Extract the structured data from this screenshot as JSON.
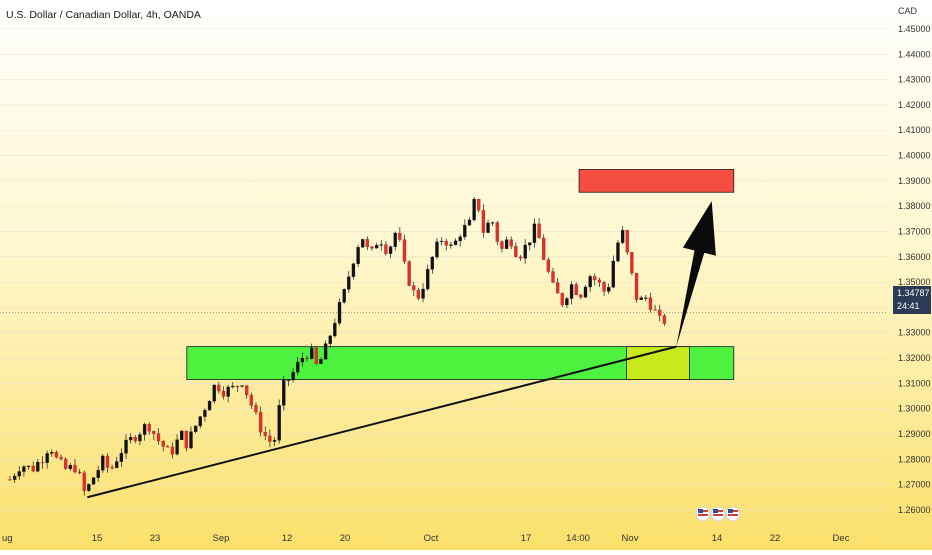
{
  "chart_data": {
    "type": "candlestick",
    "title": "U.S. Dollar / Canadian Dollar, 4h, OANDA",
    "ylabel": "CAD",
    "ylim": [
      1.26,
      1.46
    ],
    "y_ticks": [
      "1.45000",
      "1.44000",
      "1.43000",
      "1.42000",
      "1.41000",
      "1.40000",
      "1.39000",
      "1.38000",
      "1.37000",
      "1.36000",
      "1.35000",
      "1.34000",
      "1.33000",
      "1.32000",
      "1.31000",
      "1.30000",
      "1.29000",
      "1.28000",
      "1.27000",
      "1.26000"
    ],
    "x_ticks": [
      "ug",
      "15",
      "23",
      "Sep",
      "12",
      "20",
      "Oct",
      "17",
      "14:00",
      "Nov",
      "14",
      "22",
      "Dec"
    ],
    "current_price": "1.34787",
    "countdown": "24:41",
    "price_path": [
      {
        "t": 0.0,
        "p": 1.282
      },
      {
        "t": 1.0,
        "p": 1.288
      },
      {
        "t": 2.0,
        "p": 1.286
      },
      {
        "t": 3.0,
        "p": 1.291
      },
      {
        "t": 3.6,
        "p": 1.296
      },
      {
        "t": 4.2,
        "p": 1.29
      },
      {
        "t": 5.0,
        "p": 1.286
      },
      {
        "t": 6.0,
        "p": 1.287
      },
      {
        "t": 6.8,
        "p": 1.276
      },
      {
        "t": 7.3,
        "p": 1.281
      },
      {
        "t": 8.5,
        "p": 1.29
      },
      {
        "t": 9.0,
        "p": 1.285
      },
      {
        "t": 10.0,
        "p": 1.293
      },
      {
        "t": 11.0,
        "p": 1.298
      },
      {
        "t": 12.0,
        "p": 1.302
      },
      {
        "t": 12.5,
        "p": 1.304
      },
      {
        "t": 13.5,
        "p": 1.297
      },
      {
        "t": 14.5,
        "p": 1.292
      },
      {
        "t": 15.5,
        "p": 1.3
      },
      {
        "t": 16.0,
        "p": 1.296
      },
      {
        "t": 17.0,
        "p": 1.305
      },
      {
        "t": 17.8,
        "p": 1.312
      },
      {
        "t": 18.6,
        "p": 1.32
      },
      {
        "t": 19.3,
        "p": 1.317
      },
      {
        "t": 20.2,
        "p": 1.318
      },
      {
        "t": 21.0,
        "p": 1.321
      },
      {
        "t": 21.8,
        "p": 1.312
      },
      {
        "t": 22.6,
        "p": 1.303
      },
      {
        "t": 23.4,
        "p": 1.297
      },
      {
        "t": 24.0,
        "p": 1.298
      },
      {
        "t": 24.6,
        "p": 1.318
      },
      {
        "t": 25.6,
        "p": 1.324
      },
      {
        "t": 26.4,
        "p": 1.33
      },
      {
        "t": 27.2,
        "p": 1.333
      },
      {
        "t": 27.8,
        "p": 1.326
      },
      {
        "t": 28.6,
        "p": 1.334
      },
      {
        "t": 29.4,
        "p": 1.345
      },
      {
        "t": 30.2,
        "p": 1.355
      },
      {
        "t": 31.0,
        "p": 1.368
      },
      {
        "t": 31.8,
        "p": 1.379
      },
      {
        "t": 32.6,
        "p": 1.37
      },
      {
        "t": 33.4,
        "p": 1.378
      },
      {
        "t": 34.2,
        "p": 1.372
      },
      {
        "t": 35.0,
        "p": 1.381
      },
      {
        "t": 35.8,
        "p": 1.364
      },
      {
        "t": 36.8,
        "p": 1.353
      },
      {
        "t": 37.6,
        "p": 1.361
      },
      {
        "t": 38.4,
        "p": 1.372
      },
      {
        "t": 39.2,
        "p": 1.378
      },
      {
        "t": 40.0,
        "p": 1.373
      },
      {
        "t": 40.8,
        "p": 1.38
      },
      {
        "t": 41.6,
        "p": 1.383
      },
      {
        "t": 42.2,
        "p": 1.395
      },
      {
        "t": 42.8,
        "p": 1.38
      },
      {
        "t": 43.6,
        "p": 1.385
      },
      {
        "t": 44.4,
        "p": 1.372
      },
      {
        "t": 45.2,
        "p": 1.378
      },
      {
        "t": 46.0,
        "p": 1.37
      },
      {
        "t": 46.8,
        "p": 1.375
      },
      {
        "t": 47.6,
        "p": 1.382
      },
      {
        "t": 48.4,
        "p": 1.368
      },
      {
        "t": 49.2,
        "p": 1.357
      },
      {
        "t": 50.0,
        "p": 1.352
      },
      {
        "t": 50.8,
        "p": 1.359
      },
      {
        "t": 51.6,
        "p": 1.355
      },
      {
        "t": 52.4,
        "p": 1.363
      },
      {
        "t": 53.2,
        "p": 1.36
      },
      {
        "t": 54.0,
        "p": 1.355
      },
      {
        "t": 54.8,
        "p": 1.373
      },
      {
        "t": 55.4,
        "p": 1.38
      },
      {
        "t": 56.0,
        "p": 1.368
      },
      {
        "t": 56.8,
        "p": 1.352
      },
      {
        "t": 57.6,
        "p": 1.354
      },
      {
        "t": 58.4,
        "p": 1.348
      },
      {
        "t": 59.0,
        "p": 1.343
      },
      {
        "t": 59.6,
        "p": 1.348
      }
    ],
    "trendline": [
      {
        "t": 7.0,
        "p": 1.275
      },
      {
        "t": 60.3,
        "p": 1.3345
      }
    ],
    "zones": [
      {
        "name": "demand",
        "t0": 16.0,
        "t1": 65.5,
        "p_low": 1.3215,
        "p_high": 1.3345,
        "color": "#4ef23e"
      },
      {
        "name": "entry",
        "t0": 55.8,
        "t1": 61.5,
        "p_low": 1.3215,
        "p_high": 1.3345,
        "color": "#c6ea1a"
      },
      {
        "name": "target",
        "t0": 51.5,
        "t1": 65.5,
        "p_low": 1.3955,
        "p_high": 1.4045,
        "color": "#f44e43"
      }
    ],
    "arrow": {
      "from": {
        "t": 60.3,
        "p": 1.3345
      },
      "to": {
        "t": 63.5,
        "p": 1.392
      }
    },
    "event_markers": 3
  }
}
